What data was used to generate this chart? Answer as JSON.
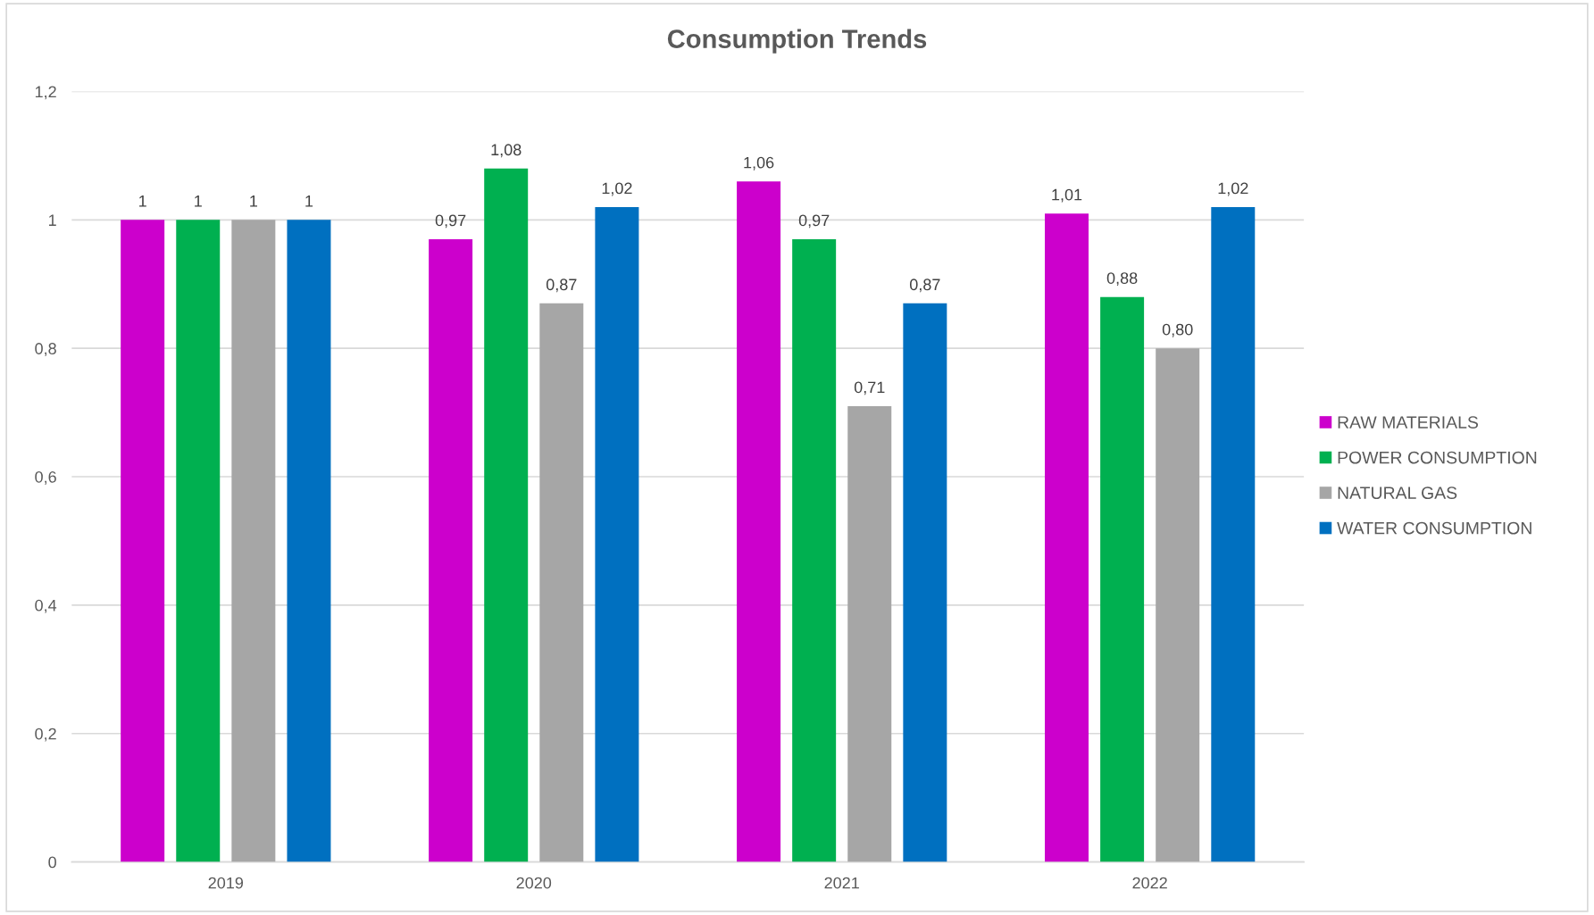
{
  "chart_data": {
    "type": "bar",
    "title": "Consumption Trends",
    "categories": [
      "2019",
      "2020",
      "2021",
      "2022"
    ],
    "series": [
      {
        "name": "RAW MATERIALS",
        "color": "#cc00cc",
        "values": [
          1,
          0.97,
          1.06,
          1.01
        ],
        "value_labels": [
          "1",
          "0,97",
          "1,06",
          "1,01"
        ]
      },
      {
        "name": "POWER CONSUMPTION",
        "color": "#00b050",
        "values": [
          1,
          1.08,
          0.97,
          0.88
        ],
        "value_labels": [
          "1",
          "1,08",
          "0,97",
          "0,88"
        ]
      },
      {
        "name": "NATURAL GAS",
        "color": "#a6a6a6",
        "values": [
          1,
          0.87,
          0.71,
          0.8
        ],
        "value_labels": [
          "1",
          "0,87",
          "0,71",
          "0,80"
        ]
      },
      {
        "name": "WATER CONSUMPTION",
        "color": "#0070c0",
        "values": [
          1,
          1.02,
          0.87,
          1.02
        ],
        "value_labels": [
          "1",
          "1,02",
          "0,87",
          "1,02"
        ]
      }
    ],
    "ylim": [
      0,
      1.2
    ],
    "yticks": [
      0,
      {
        "value": 0.2,
        "label": "0,2"
      },
      {
        "value": 0.4,
        "label": "0,4"
      },
      {
        "value": 0.6,
        "label": "0,6"
      },
      {
        "value": 0.8,
        "label": "0,8"
      },
      1,
      {
        "value": 1.2,
        "label": "1,2"
      }
    ],
    "grid": "y",
    "legend": "right"
  }
}
